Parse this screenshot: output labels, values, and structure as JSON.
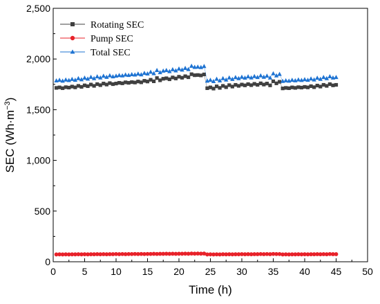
{
  "chart_data": {
    "type": "scatter",
    "xlabel": "Time (h)",
    "ylabel_main": "SEC (Wh·m",
    "ylabel_sup": "−3",
    "ylabel_close": ")",
    "xlim": [
      0,
      50
    ],
    "ylim": [
      0,
      2500
    ],
    "xticks": [
      0,
      5,
      10,
      15,
      20,
      25,
      30,
      35,
      40,
      45,
      50
    ],
    "yticks": [
      0,
      500,
      1000,
      1500,
      2000,
      2500
    ],
    "ytick_labels": [
      "0",
      "500",
      "1,000",
      "1,500",
      "2,000",
      "2,500"
    ],
    "grid": false,
    "legend_position": "top-left",
    "series": [
      {
        "name": "Rotating SEC",
        "color": "#404040",
        "marker": "square",
        "x": [
          0.5,
          1.0,
          1.5,
          2.0,
          2.5,
          3.0,
          3.5,
          4.0,
          4.5,
          5.0,
          5.5,
          6.0,
          6.5,
          7.0,
          7.5,
          8.0,
          8.5,
          9.0,
          9.5,
          10.0,
          10.5,
          11.0,
          11.5,
          12.0,
          12.5,
          13.0,
          13.5,
          14.0,
          14.5,
          15.0,
          15.5,
          16.0,
          16.5,
          17.0,
          17.5,
          18.0,
          18.5,
          19.0,
          19.5,
          20.0,
          20.5,
          21.0,
          21.5,
          22.0,
          22.5,
          23.0,
          23.5,
          24.0,
          24.5,
          25.0,
          25.5,
          26.0,
          26.5,
          27.0,
          27.5,
          28.0,
          28.5,
          29.0,
          29.5,
          30.0,
          30.5,
          31.0,
          31.5,
          32.0,
          32.5,
          33.0,
          33.5,
          34.0,
          34.5,
          35.0,
          35.5,
          36.0,
          36.5,
          37.0,
          37.5,
          38.0,
          38.5,
          39.0,
          39.5,
          40.0,
          40.5,
          41.0,
          41.5,
          42.0,
          42.5,
          43.0,
          43.5,
          44.0,
          44.5,
          45.0
        ],
        "y": [
          1715,
          1720,
          1712,
          1722,
          1718,
          1728,
          1720,
          1735,
          1725,
          1740,
          1732,
          1748,
          1735,
          1752,
          1742,
          1758,
          1748,
          1762,
          1752,
          1758,
          1765,
          1760,
          1770,
          1765,
          1772,
          1768,
          1778,
          1770,
          1785,
          1778,
          1795,
          1780,
          1812,
          1790,
          1805,
          1810,
          1800,
          1818,
          1808,
          1825,
          1815,
          1830,
          1820,
          1850,
          1840,
          1842,
          1838,
          1848,
          1712,
          1720,
          1708,
          1730,
          1715,
          1735,
          1722,
          1742,
          1728,
          1745,
          1735,
          1748,
          1740,
          1752,
          1742,
          1755,
          1745,
          1760,
          1748,
          1758,
          1740,
          1780,
          1760,
          1775,
          1710,
          1715,
          1712,
          1720,
          1715,
          1722,
          1718,
          1725,
          1720,
          1732,
          1722,
          1738,
          1728,
          1745,
          1735,
          1752,
          1740,
          1745
        ]
      },
      {
        "name": "Pump SEC",
        "color": "#e8222a",
        "marker": "circle",
        "x": [
          0.5,
          1.0,
          1.5,
          2.0,
          2.5,
          3.0,
          3.5,
          4.0,
          4.5,
          5.0,
          5.5,
          6.0,
          6.5,
          7.0,
          7.5,
          8.0,
          8.5,
          9.0,
          9.5,
          10.0,
          10.5,
          11.0,
          11.5,
          12.0,
          12.5,
          13.0,
          13.5,
          14.0,
          14.5,
          15.0,
          15.5,
          16.0,
          16.5,
          17.0,
          17.5,
          18.0,
          18.5,
          19.0,
          19.5,
          20.0,
          20.5,
          21.0,
          21.5,
          22.0,
          22.5,
          23.0,
          23.5,
          24.0,
          24.5,
          25.0,
          25.5,
          26.0,
          26.5,
          27.0,
          27.5,
          28.0,
          28.5,
          29.0,
          29.5,
          30.0,
          30.5,
          31.0,
          31.5,
          32.0,
          32.5,
          33.0,
          33.5,
          34.0,
          34.5,
          35.0,
          35.5,
          36.0,
          36.5,
          37.0,
          37.5,
          38.0,
          38.5,
          39.0,
          39.5,
          40.0,
          40.5,
          41.0,
          41.5,
          42.0,
          42.5,
          43.0,
          43.5,
          44.0,
          44.5,
          45.0
        ],
        "y": [
          72,
          73,
          72,
          73,
          72,
          73,
          73,
          74,
          73,
          74,
          73,
          74,
          74,
          75,
          74,
          75,
          74,
          75,
          75,
          76,
          75,
          76,
          75,
          76,
          76,
          77,
          76,
          77,
          76,
          77,
          77,
          78,
          77,
          78,
          78,
          79,
          78,
          79,
          78,
          79,
          79,
          80,
          79,
          81,
          80,
          81,
          80,
          81,
          72,
          73,
          72,
          73,
          72,
          74,
          73,
          74,
          73,
          74,
          74,
          75,
          74,
          75,
          74,
          75,
          75,
          76,
          75,
          76,
          75,
          77,
          76,
          76,
          72,
          73,
          72,
          73,
          73,
          74,
          73,
          74,
          73,
          74,
          74,
          75,
          74,
          75,
          74,
          76,
          75,
          75
        ]
      },
      {
        "name": "Total SEC",
        "color": "#1e73d2",
        "marker": "triangle",
        "x": [
          0.5,
          1.0,
          1.5,
          2.0,
          2.5,
          3.0,
          3.5,
          4.0,
          4.5,
          5.0,
          5.5,
          6.0,
          6.5,
          7.0,
          7.5,
          8.0,
          8.5,
          9.0,
          9.5,
          10.0,
          10.5,
          11.0,
          11.5,
          12.0,
          12.5,
          13.0,
          13.5,
          14.0,
          14.5,
          15.0,
          15.5,
          16.0,
          16.5,
          17.0,
          17.5,
          18.0,
          18.5,
          19.0,
          19.5,
          20.0,
          20.5,
          21.0,
          21.5,
          22.0,
          22.5,
          23.0,
          23.5,
          24.0,
          24.5,
          25.0,
          25.5,
          26.0,
          26.5,
          27.0,
          27.5,
          28.0,
          28.5,
          29.0,
          29.5,
          30.0,
          30.5,
          31.0,
          31.5,
          32.0,
          32.5,
          33.0,
          33.5,
          34.0,
          34.5,
          35.0,
          35.5,
          36.0,
          36.5,
          37.0,
          37.5,
          38.0,
          38.5,
          39.0,
          39.5,
          40.0,
          40.5,
          41.0,
          41.5,
          42.0,
          42.5,
          43.0,
          43.5,
          44.0,
          44.5,
          45.0
        ],
        "y": [
          1787,
          1793,
          1784,
          1795,
          1790,
          1801,
          1793,
          1809,
          1798,
          1814,
          1805,
          1822,
          1809,
          1827,
          1816,
          1833,
          1822,
          1837,
          1827,
          1834,
          1840,
          1836,
          1845,
          1841,
          1848,
          1845,
          1854,
          1847,
          1861,
          1855,
          1872,
          1858,
          1889,
          1868,
          1883,
          1889,
          1878,
          1897,
          1886,
          1904,
          1894,
          1910,
          1899,
          1931,
          1920,
          1923,
          1918,
          1929,
          1784,
          1793,
          1780,
          1803,
          1787,
          1809,
          1795,
          1816,
          1801,
          1819,
          1809,
          1823,
          1814,
          1827,
          1816,
          1830,
          1820,
          1836,
          1823,
          1834,
          1815,
          1857,
          1836,
          1851,
          1782,
          1788,
          1784,
          1793,
          1788,
          1796,
          1791,
          1799,
          1793,
          1806,
          1796,
          1813,
          1802,
          1820,
          1809,
          1828,
          1815,
          1820
        ]
      }
    ]
  }
}
